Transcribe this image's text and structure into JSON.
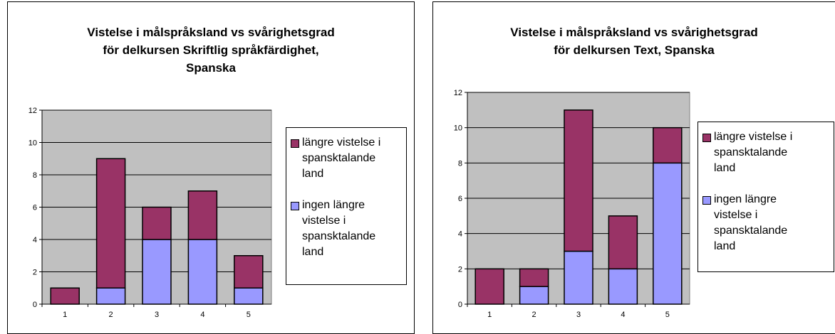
{
  "chart_data": [
    {
      "type": "bar",
      "stacked": true,
      "title": [
        "Vistelse i målspråksland vs svårighetsgrad",
        "för delkursen Skriftlig språkfärdighet,",
        "Spanska"
      ],
      "categories": [
        "1",
        "2",
        "3",
        "4",
        "5"
      ],
      "series": [
        {
          "name": "ingen längre vistelse i spansktalande land",
          "color": "#9999ff",
          "values": [
            0,
            1,
            4,
            4,
            1
          ]
        },
        {
          "name": "längre vistelse i spansktalande land",
          "color": "#993366",
          "values": [
            1,
            8,
            2,
            3,
            2
          ]
        }
      ],
      "ylim": [
        0,
        12
      ],
      "yticks": [
        0,
        2,
        4,
        6,
        8,
        10,
        12
      ],
      "grid": true,
      "legend": "right"
    },
    {
      "type": "bar",
      "stacked": true,
      "title": [
        "Vistelse i målspråksland vs svårighetsgrad",
        "för delkursen Text, Spanska"
      ],
      "categories": [
        "1",
        "2",
        "3",
        "4",
        "5"
      ],
      "series": [
        {
          "name": "ingen längre vistelse i spansktalande land",
          "color": "#9999ff",
          "values": [
            0,
            1,
            3,
            2,
            8
          ]
        },
        {
          "name": "längre vistelse i spansktalande land",
          "color": "#993366",
          "values": [
            2,
            1,
            8,
            3,
            2
          ]
        }
      ],
      "ylim": [
        0,
        12
      ],
      "yticks": [
        0,
        2,
        4,
        6,
        8,
        10,
        12
      ],
      "grid": true,
      "legend": "right"
    }
  ]
}
